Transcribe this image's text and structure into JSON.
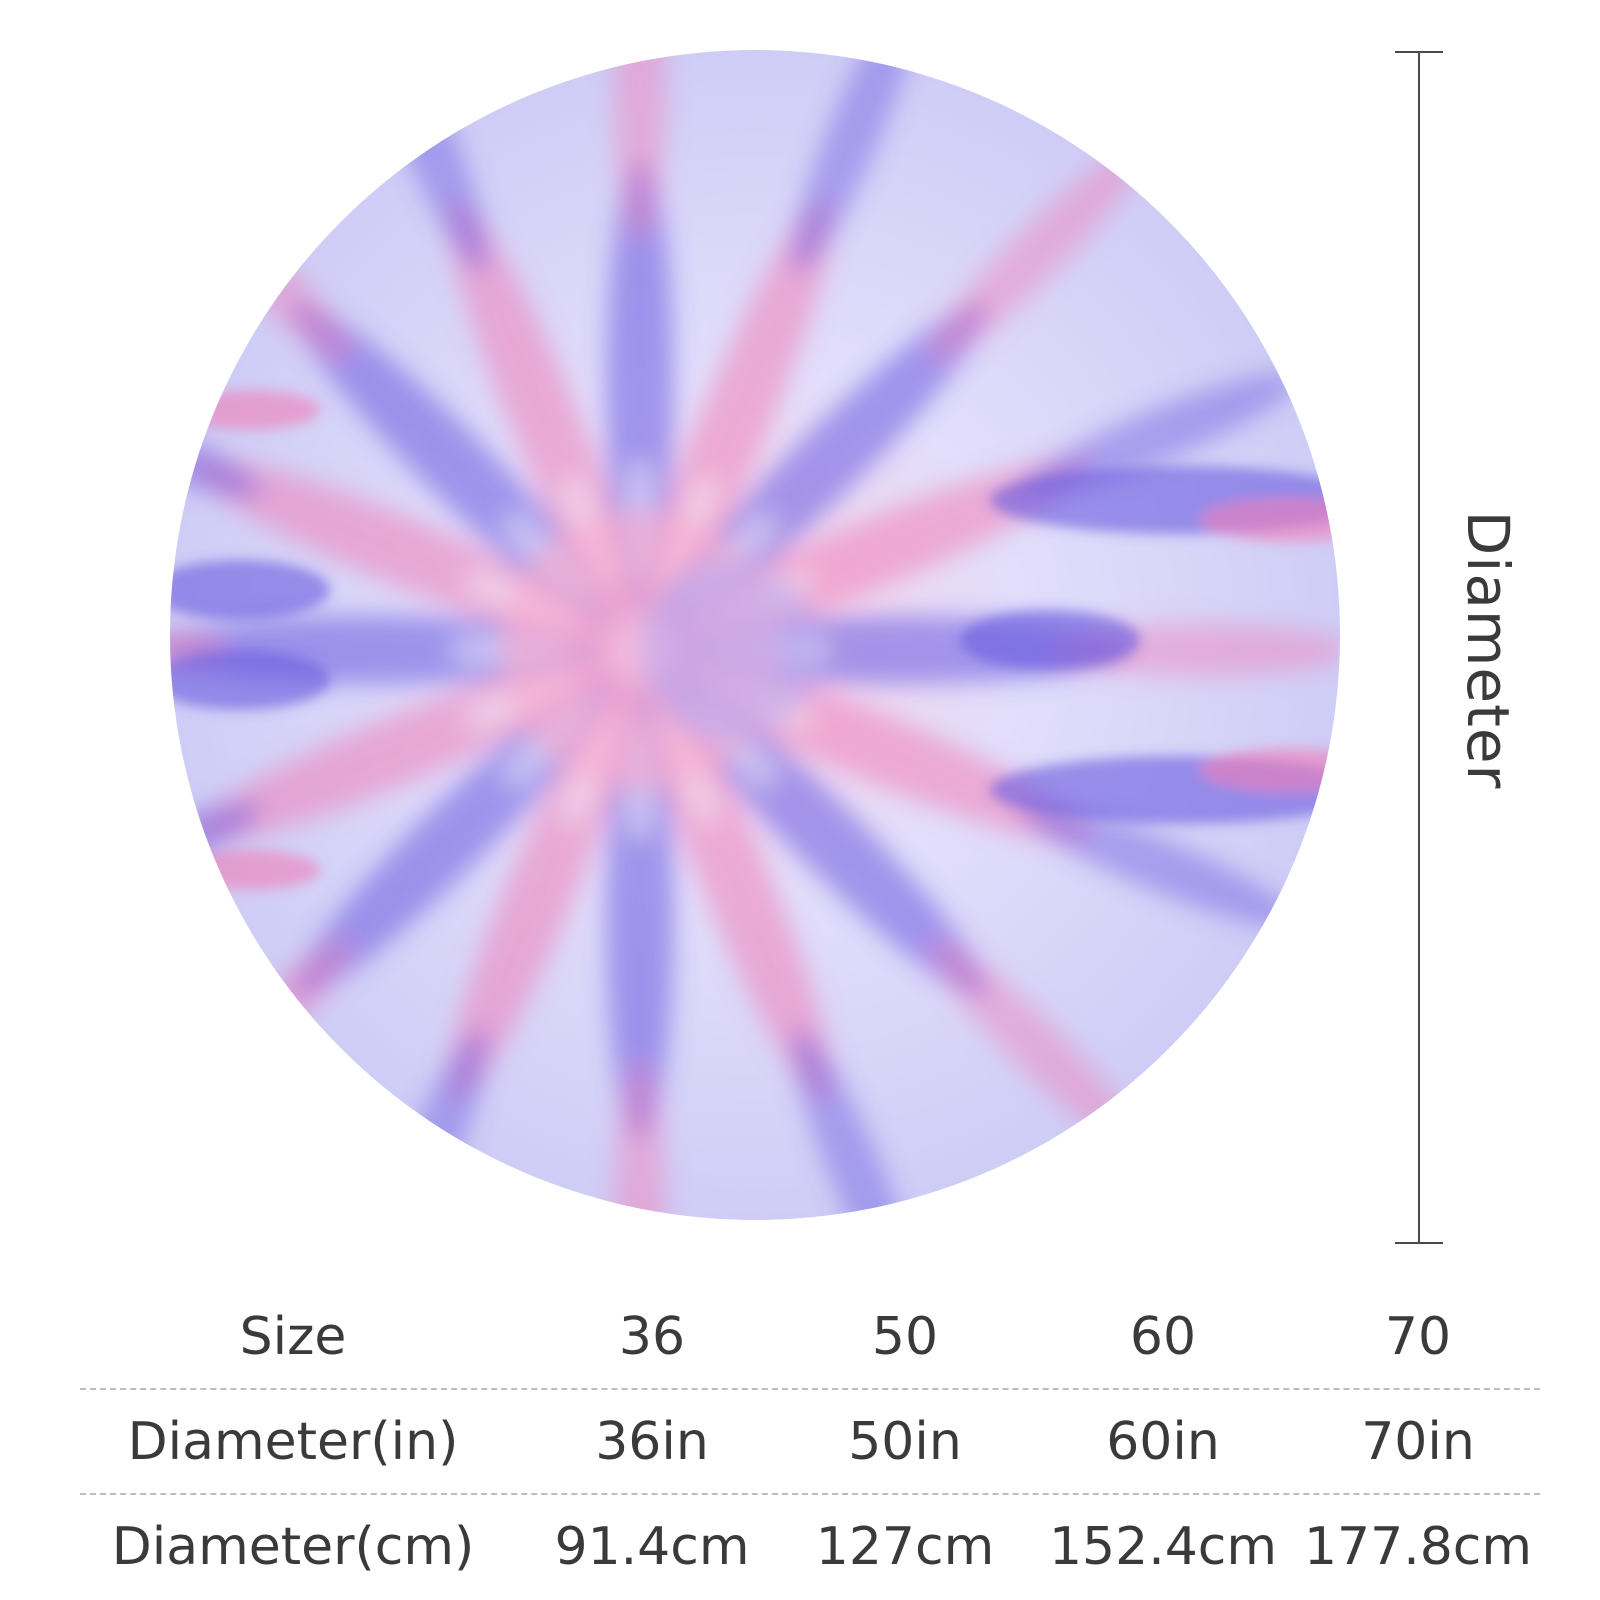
{
  "product": {
    "dimension_label": "Diameter",
    "colors": {
      "lavender": "#c9c9f5",
      "violet": "#6a5ae0",
      "pink": "#f07fb8",
      "white": "#f8f6ff"
    }
  },
  "size_table": {
    "rows": [
      {
        "label": "Size",
        "values": [
          "36",
          "50",
          "60",
          "70"
        ]
      },
      {
        "label": "Diameter(in)",
        "values": [
          "36in",
          "50in",
          "60in",
          "70in"
        ]
      },
      {
        "label": "Diameter(cm)",
        "values": [
          "91.4cm",
          "127cm",
          "152.4cm",
          "177.8cm"
        ]
      }
    ]
  }
}
